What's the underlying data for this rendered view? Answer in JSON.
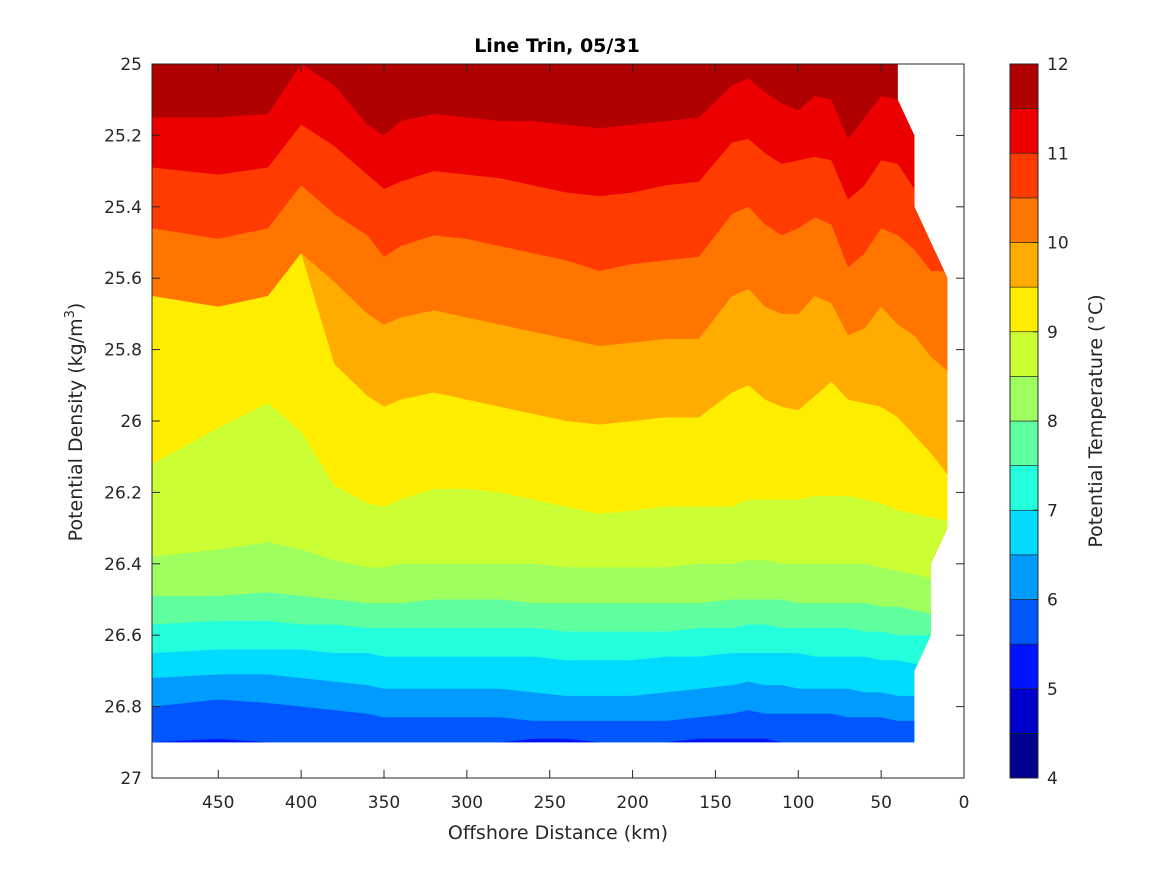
{
  "chart_data": {
    "type": "contour",
    "title": "Line Trin, 05/31",
    "xlabel": "Offshore Distance (km)",
    "ylabel": "Potential Density (kg/m",
    "ylabel_sup": "3",
    "ylabel_close": ")",
    "colorbar_label": "Potential Temperature (°C)",
    "xlim": [
      490,
      0
    ],
    "x_reversed": true,
    "ylim": [
      25,
      27
    ],
    "y_reversed": true,
    "xticks": [
      450,
      400,
      350,
      300,
      250,
      200,
      150,
      100,
      50,
      0
    ],
    "yticks": [
      25,
      25.2,
      25.4,
      25.6,
      25.8,
      26,
      26.2,
      26.4,
      26.6,
      26.8,
      27
    ],
    "ytick_labels": [
      "25",
      "25.2",
      "25.4",
      "25.6",
      "25.8",
      "26",
      "26.2",
      "26.4",
      "26.6",
      "26.8",
      "27"
    ],
    "clim": [
      4,
      12
    ],
    "cbar_ticks": [
      4,
      5,
      6,
      7,
      8,
      9,
      10,
      11,
      12
    ],
    "levels": [
      4,
      4.5,
      5,
      5.5,
      6,
      6.5,
      7,
      7.5,
      8,
      8.5,
      9,
      9.5,
      10,
      10.5,
      11,
      11.5,
      12
    ],
    "level_colors": [
      "#00008f",
      "#0000cc",
      "#0013ff",
      "#0057ff",
      "#009bff",
      "#00dbff",
      "#23ffdc",
      "#5fff9f",
      "#9fff5f",
      "#ccff33",
      "#ffed00",
      "#ffab00",
      "#ff7500",
      "#ff3b00",
      "#ed0000",
      "#b00000"
    ],
    "data_x_range": [
      490,
      10
    ],
    "data_y_range": [
      25,
      26.9
    ],
    "contours": [
      {
        "level": 12,
        "x": [
          490,
          450,
          420,
          400,
          380,
          360,
          350,
          340,
          320,
          300,
          280,
          260,
          240,
          220,
          200,
          180,
          160,
          140,
          130,
          120,
          110,
          100,
          90,
          80,
          70,
          60,
          50,
          40
        ],
        "y": [
          24.99,
          24.99,
          24.99,
          24.99,
          24.99,
          24.99,
          25.03,
          24.99,
          24.99,
          24.99,
          24.99,
          24.99,
          24.99,
          24.99,
          24.99,
          24.99,
          24.99,
          24.99,
          24.99,
          24.99,
          24.99,
          24.99,
          24.99,
          24.99,
          24.99,
          24.99,
          24.99,
          24.99
        ]
      },
      {
        "level": 11.5,
        "x": [
          490,
          450,
          420,
          400,
          380,
          360,
          350,
          340,
          320,
          300,
          280,
          260,
          240,
          220,
          200,
          180,
          160,
          140,
          130,
          120,
          110,
          100,
          90,
          80,
          70,
          60,
          50,
          40
        ],
        "y": [
          25.15,
          25.15,
          25.14,
          25.0,
          25.06,
          25.17,
          25.2,
          25.16,
          25.14,
          25.15,
          25.16,
          25.16,
          25.17,
          25.18,
          25.17,
          25.16,
          25.15,
          25.06,
          25.04,
          25.08,
          25.11,
          25.13,
          25.09,
          25.1,
          25.21,
          25.15,
          25.09,
          25.1
        ]
      },
      {
        "level": 11,
        "x": [
          490,
          450,
          420,
          400,
          380,
          360,
          350,
          340,
          320,
          300,
          280,
          260,
          240,
          220,
          200,
          180,
          160,
          140,
          130,
          120,
          110,
          100,
          90,
          80,
          70,
          60,
          50,
          40,
          30
        ],
        "y": [
          25.29,
          25.31,
          25.29,
          25.17,
          25.23,
          25.31,
          25.35,
          25.33,
          25.3,
          25.31,
          25.32,
          25.34,
          25.36,
          25.37,
          25.36,
          25.34,
          25.33,
          25.22,
          25.21,
          25.25,
          25.28,
          25.27,
          25.26,
          25.27,
          25.38,
          25.34,
          25.27,
          25.28,
          25.35
        ]
      },
      {
        "level": 10.5,
        "x": [
          490,
          450,
          420,
          400,
          380,
          360,
          350,
          340,
          320,
          300,
          280,
          260,
          240,
          220,
          200,
          180,
          160,
          140,
          130,
          120,
          110,
          100,
          90,
          80,
          70,
          60,
          50,
          40,
          30,
          20
        ],
        "y": [
          25.46,
          25.49,
          25.46,
          25.34,
          25.42,
          25.48,
          25.54,
          25.51,
          25.48,
          25.49,
          25.51,
          25.53,
          25.55,
          25.58,
          25.56,
          25.55,
          25.54,
          25.42,
          25.4,
          25.45,
          25.48,
          25.46,
          25.43,
          25.45,
          25.57,
          25.53,
          25.46,
          25.48,
          25.52,
          25.58
        ]
      },
      {
        "level": 10,
        "x": [
          490,
          450,
          420,
          400,
          380,
          360,
          350,
          340,
          320,
          300,
          280,
          260,
          240,
          220,
          200,
          180,
          160,
          140,
          130,
          120,
          110,
          100,
          90,
          80,
          70,
          60,
          50,
          40,
          30,
          20,
          10
        ],
        "y": [
          25.65,
          25.68,
          25.65,
          25.53,
          25.61,
          25.7,
          25.73,
          25.71,
          25.69,
          25.71,
          25.73,
          25.75,
          25.77,
          25.79,
          25.78,
          25.77,
          25.77,
          25.65,
          25.63,
          25.68,
          25.7,
          25.7,
          25.65,
          25.67,
          25.76,
          25.74,
          25.68,
          25.73,
          25.76,
          25.82,
          25.86
        ]
      },
      {
        "level": 9.5,
        "x": [
          490,
          450,
          420,
          400,
          380,
          360,
          350,
          340,
          320,
          300,
          280,
          260,
          240,
          220,
          200,
          180,
          160,
          140,
          130,
          120,
          110,
          100,
          90,
          80,
          70,
          60,
          50,
          40,
          30,
          20,
          10
        ],
        "y": [
          25.65,
          25.68,
          25.65,
          25.53,
          25.84,
          25.93,
          25.96,
          25.94,
          25.92,
          25.94,
          25.96,
          25.98,
          26.0,
          26.01,
          26.0,
          25.99,
          25.99,
          25.92,
          25.9,
          25.94,
          25.96,
          25.97,
          25.93,
          25.89,
          25.94,
          25.95,
          25.96,
          25.99,
          26.04,
          26.09,
          26.15
        ]
      },
      {
        "level": 9,
        "x": [
          490,
          450,
          420,
          400,
          380,
          360,
          350,
          340,
          320,
          300,
          280,
          260,
          240,
          220,
          200,
          180,
          160,
          140,
          130,
          120,
          110,
          100,
          90,
          80,
          70,
          60,
          50,
          40,
          30,
          20,
          10
        ],
        "y": [
          26.12,
          26.02,
          25.95,
          26.03,
          26.18,
          26.23,
          26.24,
          26.22,
          26.19,
          26.19,
          26.2,
          26.22,
          26.24,
          26.26,
          26.25,
          26.24,
          26.24,
          26.24,
          26.22,
          26.22,
          26.22,
          26.22,
          26.21,
          26.21,
          26.21,
          26.22,
          26.23,
          26.25,
          26.26,
          26.27,
          26.28
        ]
      },
      {
        "level": 8.5,
        "x": [
          490,
          450,
          420,
          400,
          380,
          360,
          350,
          340,
          320,
          300,
          280,
          260,
          240,
          220,
          200,
          180,
          160,
          140,
          130,
          120,
          110,
          100,
          90,
          80,
          70,
          60,
          50,
          40,
          30,
          20,
          10
        ],
        "y": [
          26.38,
          26.36,
          26.34,
          26.36,
          26.39,
          26.41,
          26.41,
          26.4,
          26.4,
          26.4,
          26.4,
          26.4,
          26.41,
          26.41,
          26.41,
          26.41,
          26.4,
          26.4,
          26.39,
          26.39,
          26.4,
          26.4,
          26.4,
          26.4,
          26.4,
          26.4,
          26.41,
          26.42,
          26.43,
          26.44,
          26.3
        ]
      },
      {
        "level": 8,
        "x": [
          490,
          450,
          420,
          400,
          380,
          360,
          350,
          340,
          320,
          300,
          280,
          260,
          240,
          220,
          200,
          180,
          160,
          140,
          130,
          120,
          110,
          100,
          90,
          80,
          70,
          60,
          50,
          40,
          30,
          20
        ],
        "y": [
          26.49,
          26.49,
          26.48,
          26.49,
          26.5,
          26.51,
          26.51,
          26.51,
          26.5,
          26.5,
          26.5,
          26.51,
          26.51,
          26.51,
          26.51,
          26.51,
          26.51,
          26.5,
          26.5,
          26.5,
          26.5,
          26.51,
          26.51,
          26.51,
          26.51,
          26.51,
          26.52,
          26.52,
          26.53,
          26.54
        ]
      },
      {
        "level": 7.5,
        "x": [
          490,
          450,
          420,
          400,
          380,
          360,
          350,
          340,
          320,
          300,
          280,
          260,
          240,
          220,
          200,
          180,
          160,
          140,
          130,
          120,
          110,
          100,
          90,
          80,
          70,
          60,
          50,
          40,
          30,
          20
        ],
        "y": [
          26.57,
          26.56,
          26.56,
          26.57,
          26.57,
          26.58,
          26.58,
          26.58,
          26.58,
          26.58,
          26.58,
          26.58,
          26.59,
          26.59,
          26.59,
          26.59,
          26.58,
          26.58,
          26.57,
          26.57,
          26.58,
          26.58,
          26.58,
          26.58,
          26.58,
          26.59,
          26.59,
          26.6,
          26.6,
          26.6
        ]
      },
      {
        "level": 7,
        "x": [
          490,
          450,
          420,
          400,
          380,
          360,
          350,
          340,
          320,
          300,
          280,
          260,
          240,
          220,
          200,
          180,
          160,
          140,
          130,
          120,
          110,
          100,
          90,
          80,
          70,
          60,
          50,
          40,
          30,
          20
        ],
        "y": [
          26.65,
          26.64,
          26.64,
          26.64,
          26.65,
          26.65,
          26.66,
          26.66,
          26.66,
          26.66,
          26.66,
          26.66,
          26.67,
          26.67,
          26.67,
          26.66,
          26.66,
          26.65,
          26.65,
          26.65,
          26.65,
          26.65,
          26.66,
          26.66,
          26.66,
          26.66,
          26.67,
          26.67,
          26.68,
          26.68
        ]
      },
      {
        "level": 6.5,
        "x": [
          490,
          450,
          420,
          400,
          380,
          360,
          350,
          340,
          320,
          300,
          280,
          260,
          240,
          220,
          200,
          180,
          160,
          140,
          130,
          120,
          110,
          100,
          90,
          80,
          70,
          60,
          50,
          40,
          30
        ],
        "y": [
          26.72,
          26.71,
          26.71,
          26.72,
          26.73,
          26.74,
          26.75,
          26.75,
          26.75,
          26.75,
          26.75,
          26.76,
          26.77,
          26.77,
          26.77,
          26.76,
          26.75,
          26.74,
          26.73,
          26.74,
          26.74,
          26.75,
          26.75,
          26.75,
          26.75,
          26.76,
          26.76,
          26.77,
          26.77
        ]
      },
      {
        "level": 6,
        "x": [
          490,
          450,
          420,
          400,
          380,
          360,
          350,
          340,
          320,
          300,
          280,
          260,
          240,
          220,
          200,
          180,
          160,
          140,
          130,
          120,
          110,
          100,
          90,
          80,
          70,
          60,
          50,
          40,
          30
        ],
        "y": [
          26.8,
          26.78,
          26.79,
          26.8,
          26.81,
          26.82,
          26.83,
          26.83,
          26.83,
          26.83,
          26.83,
          26.84,
          26.84,
          26.84,
          26.84,
          26.84,
          26.83,
          26.82,
          26.81,
          26.82,
          26.82,
          26.82,
          26.82,
          26.82,
          26.83,
          26.83,
          26.83,
          26.84,
          26.84
        ]
      },
      {
        "level": 5.5,
        "x": [
          490,
          450,
          420,
          400,
          380,
          360,
          350,
          340,
          320,
          300,
          280,
          260,
          240,
          220,
          200,
          180,
          160,
          140,
          130,
          120,
          110,
          100,
          90,
          80,
          70,
          60,
          50,
          40,
          30
        ],
        "y": [
          26.9,
          26.89,
          26.9,
          26.9,
          26.9,
          26.9,
          26.9,
          26.9,
          26.9,
          26.9,
          26.9,
          26.89,
          26.89,
          26.9,
          26.9,
          26.9,
          26.89,
          26.89,
          26.89,
          26.89,
          26.9,
          26.9,
          26.9,
          26.9,
          26.9,
          26.9,
          26.9,
          26.9,
          26.9
        ]
      }
    ]
  }
}
